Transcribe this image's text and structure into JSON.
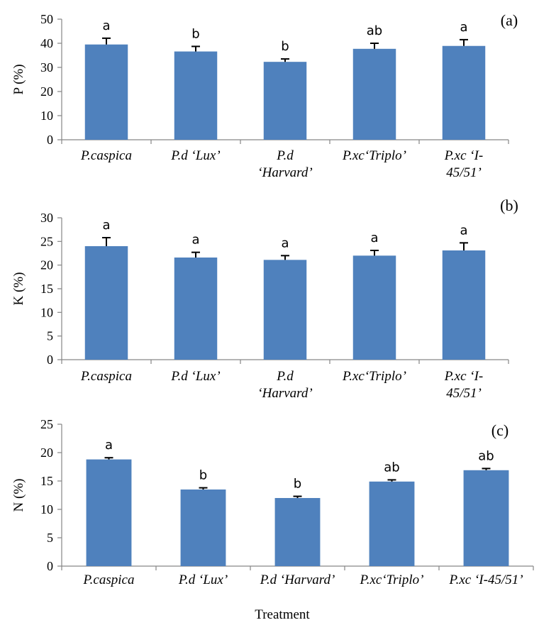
{
  "colors": {
    "bar": "#4f81bd",
    "axis": "#868686",
    "text": "#000000"
  },
  "xlabel": "Treatment",
  "chart_data": [
    {
      "type": "bar",
      "panel_label": "(a)",
      "ylabel": "P (%)",
      "ylim": [
        0,
        50
      ],
      "yticks": [
        "0",
        "10",
        "20",
        "30",
        "40",
        "50"
      ],
      "categories": [
        [
          "P.caspica"
        ],
        [
          "P.d ‘Lux’"
        ],
        [
          "P.d",
          "‘Harvard’"
        ],
        [
          "P.xc‘Triplo’"
        ],
        [
          "P.xc ‘I-",
          "45/51’"
        ]
      ],
      "values": [
        39.5,
        36.6,
        32.3,
        37.7,
        38.9
      ],
      "errors": [
        2.6,
        2.1,
        1.2,
        2.3,
        2.6
      ],
      "significance": [
        "a",
        "b",
        "b",
        "ab",
        "a"
      ],
      "grid": false,
      "legend": "none"
    },
    {
      "type": "bar",
      "panel_label": "(b)",
      "ylabel": "K  (%)",
      "ylim": [
        0,
        30
      ],
      "yticks": [
        "0",
        "5",
        "10",
        "15",
        "20",
        "25",
        "30"
      ],
      "categories": [
        [
          "P.caspica"
        ],
        [
          "P.d ‘Lux’"
        ],
        [
          "P.d",
          "‘Harvard’"
        ],
        [
          "P.xc‘Triplo’"
        ],
        [
          "P.xc ‘I-",
          "45/51’"
        ]
      ],
      "values": [
        24.0,
        21.6,
        21.1,
        22.0,
        23.1
      ],
      "errors": [
        1.8,
        1.1,
        0.9,
        1.1,
        1.6
      ],
      "significance": [
        "a",
        "a",
        "a",
        "a",
        "a"
      ],
      "grid": false,
      "legend": "none"
    },
    {
      "type": "bar",
      "panel_label": "(c)",
      "ylabel": "N (%)",
      "ylim": [
        0,
        25
      ],
      "yticks": [
        "0",
        "5",
        "10",
        "15",
        "20",
        "25"
      ],
      "categories": [
        [
          "P.caspica"
        ],
        [
          "P.d ‘Lux’"
        ],
        [
          "P.d ‘Harvard’"
        ],
        [
          "P.xc‘Triplo’"
        ],
        [
          "P.xc ‘I-45/51’"
        ]
      ],
      "values": [
        18.8,
        13.5,
        12.0,
        14.9,
        16.9
      ],
      "errors": [
        0.3,
        0.3,
        0.3,
        0.3,
        0.3
      ],
      "significance": [
        "a",
        "b",
        "b",
        "ab",
        "ab"
      ],
      "grid": false,
      "legend": "none"
    }
  ]
}
